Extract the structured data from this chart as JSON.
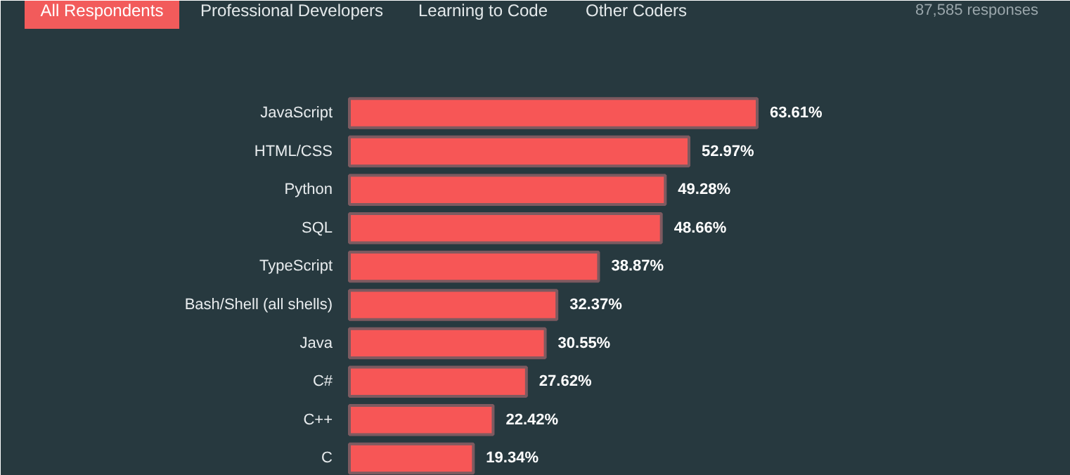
{
  "chart_data": {
    "type": "bar",
    "orientation": "horizontal",
    "subtitle": "87,585 responses",
    "annotations": [
      "All Respondents",
      "Professional Developers",
      "Learning to Code",
      "Other Coders"
    ],
    "categories": [
      "JavaScript",
      "HTML/CSS",
      "Python",
      "SQL",
      "TypeScript",
      "Bash/Shell (all shells)",
      "Java",
      "C#",
      "C++",
      "C"
    ],
    "values": [
      63.61,
      52.97,
      49.28,
      48.66,
      38.87,
      32.37,
      30.55,
      27.62,
      22.42,
      19.34
    ],
    "value_labels": [
      "63.61%",
      "52.97%",
      "49.28%",
      "48.66%",
      "38.87%",
      "32.37%",
      "30.55%",
      "27.62%",
      "22.42%",
      "19.34%"
    ],
    "color": "#f75656"
  }
}
